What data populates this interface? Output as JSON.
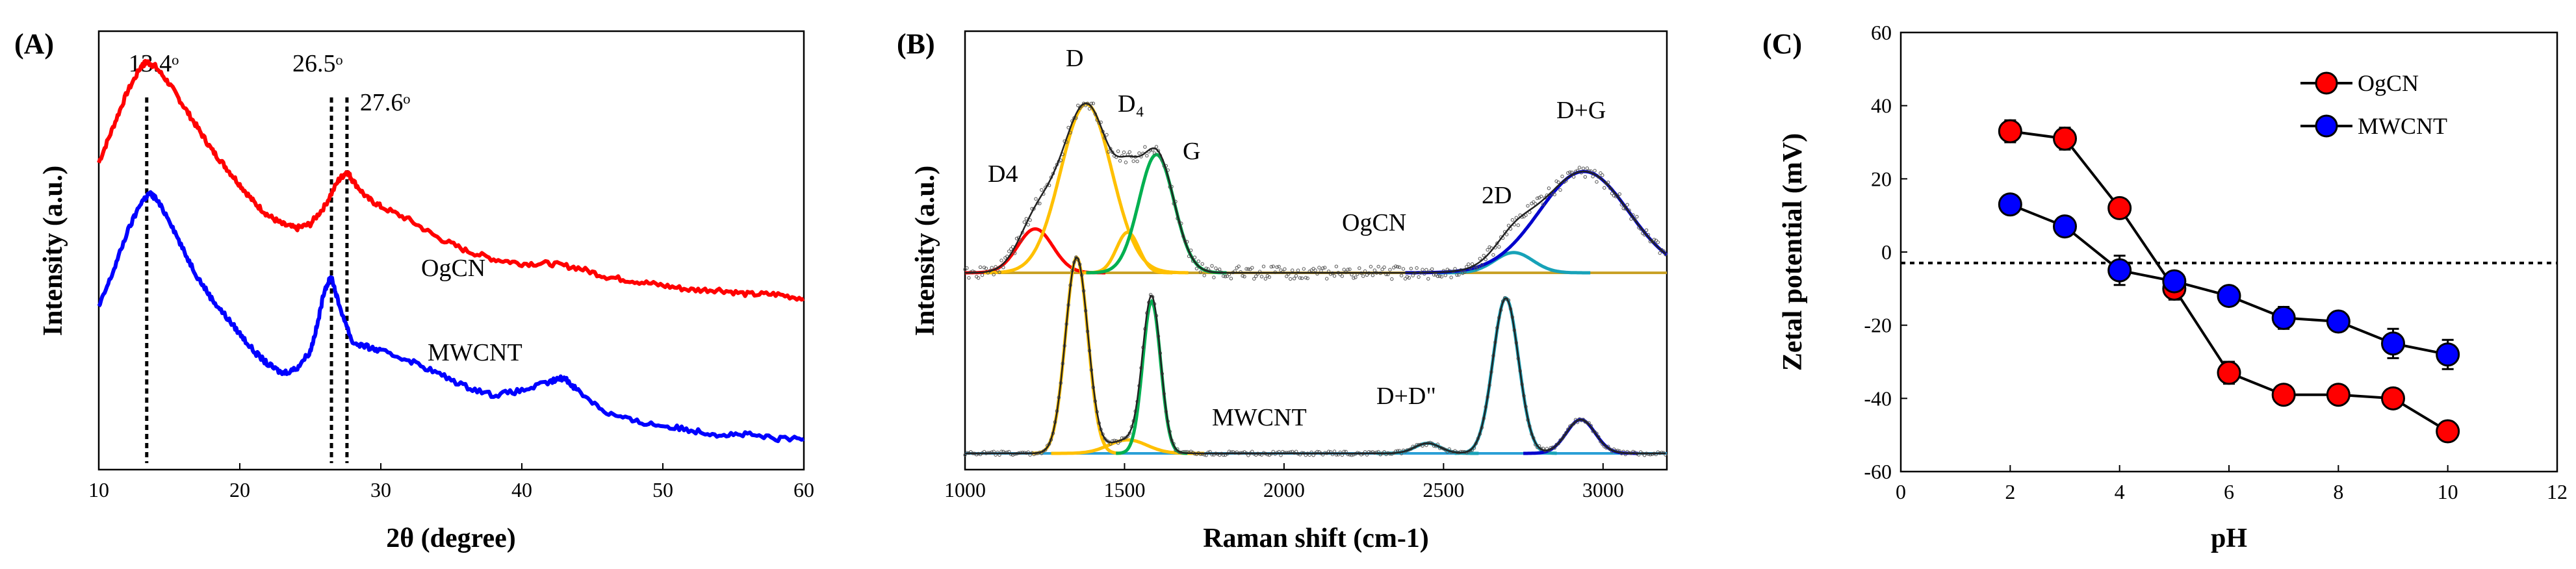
{
  "chart_data": [
    {
      "panel": "(A)",
      "type": "line",
      "xlabel": "2θ (degree)",
      "ylabel": "Intensity (a.u.)",
      "xlim": [
        10,
        60
      ],
      "xticks": [
        "10",
        "20",
        "30",
        "40",
        "50",
        "60"
      ],
      "grid": false,
      "series": [
        {
          "name": "OgCN",
          "color": "#ff0000",
          "x": [
            10,
            11,
            12,
            13,
            13.4,
            14,
            15,
            16,
            17,
            18,
            19,
            20,
            21,
            22,
            23,
            24,
            25,
            26,
            27,
            27.6,
            28,
            29,
            30,
            32,
            34,
            36,
            38,
            40,
            42,
            44,
            46,
            48,
            50,
            52,
            54,
            56,
            58,
            60
          ],
          "y": [
            0.7,
            0.78,
            0.86,
            0.92,
            0.93,
            0.92,
            0.88,
            0.83,
            0.78,
            0.73,
            0.69,
            0.65,
            0.61,
            0.58,
            0.56,
            0.55,
            0.56,
            0.6,
            0.66,
            0.68,
            0.66,
            0.62,
            0.6,
            0.57,
            0.53,
            0.5,
            0.48,
            0.47,
            0.47,
            0.46,
            0.44,
            0.43,
            0.42,
            0.41,
            0.41,
            0.4,
            0.4,
            0.39
          ]
        },
        {
          "name": "MWCNT",
          "color": "#0000ff",
          "x": [
            10,
            11,
            12,
            13,
            13.6,
            14,
            15,
            16,
            17,
            18,
            19,
            20,
            21,
            22,
            23,
            24,
            25,
            25.5,
            26,
            26.5,
            27,
            28,
            29,
            30,
            32,
            34,
            36,
            38,
            40,
            42,
            43,
            44,
            46,
            48,
            50,
            52,
            54,
            56,
            58,
            60
          ],
          "y": [
            0.37,
            0.45,
            0.54,
            0.61,
            0.63,
            0.62,
            0.57,
            0.5,
            0.44,
            0.39,
            0.35,
            0.31,
            0.27,
            0.24,
            0.22,
            0.23,
            0.27,
            0.33,
            0.41,
            0.44,
            0.38,
            0.29,
            0.28,
            0.27,
            0.25,
            0.22,
            0.19,
            0.17,
            0.18,
            0.2,
            0.21,
            0.18,
            0.13,
            0.11,
            0.1,
            0.09,
            0.08,
            0.08,
            0.07,
            0.07
          ]
        }
      ],
      "reference_lines": [
        {
          "x": 13.4,
          "label": "13.4ᵒ"
        },
        {
          "x": 26.5,
          "label": "26.5ᵒ"
        },
        {
          "x": 27.6,
          "label": "27.6ᵒ"
        }
      ],
      "annotations": [
        "OgCN",
        "MWCNT"
      ]
    },
    {
      "panel": "(B)",
      "type": "line",
      "xlabel": "Raman shift (cm-1)",
      "ylabel": "Intensity (a.u.)",
      "xlim": [
        1000,
        3200
      ],
      "xticks": [
        "1000",
        "1500",
        "2000",
        "2500",
        "3000"
      ],
      "grid": false,
      "spectra": [
        {
          "name": "OgCN",
          "peaks": [
            {
              "label": "D4",
              "center": 1220,
              "height": 0.13,
              "width": 55,
              "color": "#ff0000"
            },
            {
              "label": "D",
              "center": 1380,
              "height": 0.5,
              "width": 80,
              "color": "#ffc000"
            },
            {
              "label": "D₄",
              "center": 1510,
              "height": 0.12,
              "width": 35,
              "color": "#ffc000"
            },
            {
              "label": "G",
              "center": 1600,
              "height": 0.35,
              "width": 55,
              "color": "#00b050"
            },
            {
              "label": "2D",
              "center": 2720,
              "height": 0.06,
              "width": 60,
              "color": "#17a2b8"
            },
            {
              "label": "D+G",
              "center": 2940,
              "height": 0.3,
              "width": 140,
              "color": "#0000cc"
            }
          ]
        },
        {
          "name": "MWCNT",
          "peaks": [
            {
              "label": "D",
              "center": 1350,
              "height": 0.58,
              "width": 35,
              "color": "#ffc000"
            },
            {
              "label": "",
              "center": 1510,
              "height": 0.04,
              "width": 60,
              "color": "#ffc000"
            },
            {
              "label": "G",
              "center": 1585,
              "height": 0.45,
              "width": 28,
              "color": "#00b050"
            },
            {
              "label": "D+D\"",
              "center": 2450,
              "height": 0.03,
              "width": 40,
              "color": "#17a2b8"
            },
            {
              "label": "2D",
              "center": 2695,
              "height": 0.46,
              "width": 40,
              "color": "#17a2b8"
            },
            {
              "label": "",
              "center": 2930,
              "height": 0.1,
              "width": 45,
              "color": "#0000cc"
            }
          ]
        }
      ],
      "annotations": [
        "D4",
        "D",
        "D₄",
        "G",
        "OgCN",
        "2D",
        "D+G",
        "MWCNT",
        "D+D\""
      ]
    },
    {
      "panel": "(C)",
      "type": "scatter",
      "xlabel": "pH",
      "ylabel": "Zetal potential (mV)",
      "xlim": [
        0,
        12
      ],
      "ylim": [
        -60,
        60
      ],
      "xticks": [
        "0",
        "2",
        "4",
        "6",
        "8",
        "10",
        "12"
      ],
      "yticks": [
        "-60",
        "-40",
        "-20",
        "0",
        "20",
        "40",
        "60"
      ],
      "grid": false,
      "reference_line_y": -3,
      "legend": "top-right",
      "series": [
        {
          "name": "OgCN",
          "color": "#ff0000",
          "x": [
            2,
            3,
            4,
            5,
            6,
            7,
            8,
            9,
            10
          ],
          "y": [
            33,
            31,
            12,
            -10,
            -33,
            -39,
            -39,
            -40,
            -49
          ],
          "err": [
            3,
            3,
            1,
            3,
            3,
            2,
            2,
            2,
            2
          ]
        },
        {
          "name": "MWCNT",
          "color": "#0000ff",
          "x": [
            2,
            3,
            4,
            5,
            6,
            7,
            8,
            9,
            10
          ],
          "y": [
            13,
            7,
            -5,
            -8,
            -12,
            -18,
            -19,
            -25,
            -28
          ],
          "err": [
            1,
            1,
            4,
            2,
            2,
            3,
            2,
            4,
            4
          ]
        }
      ]
    }
  ]
}
